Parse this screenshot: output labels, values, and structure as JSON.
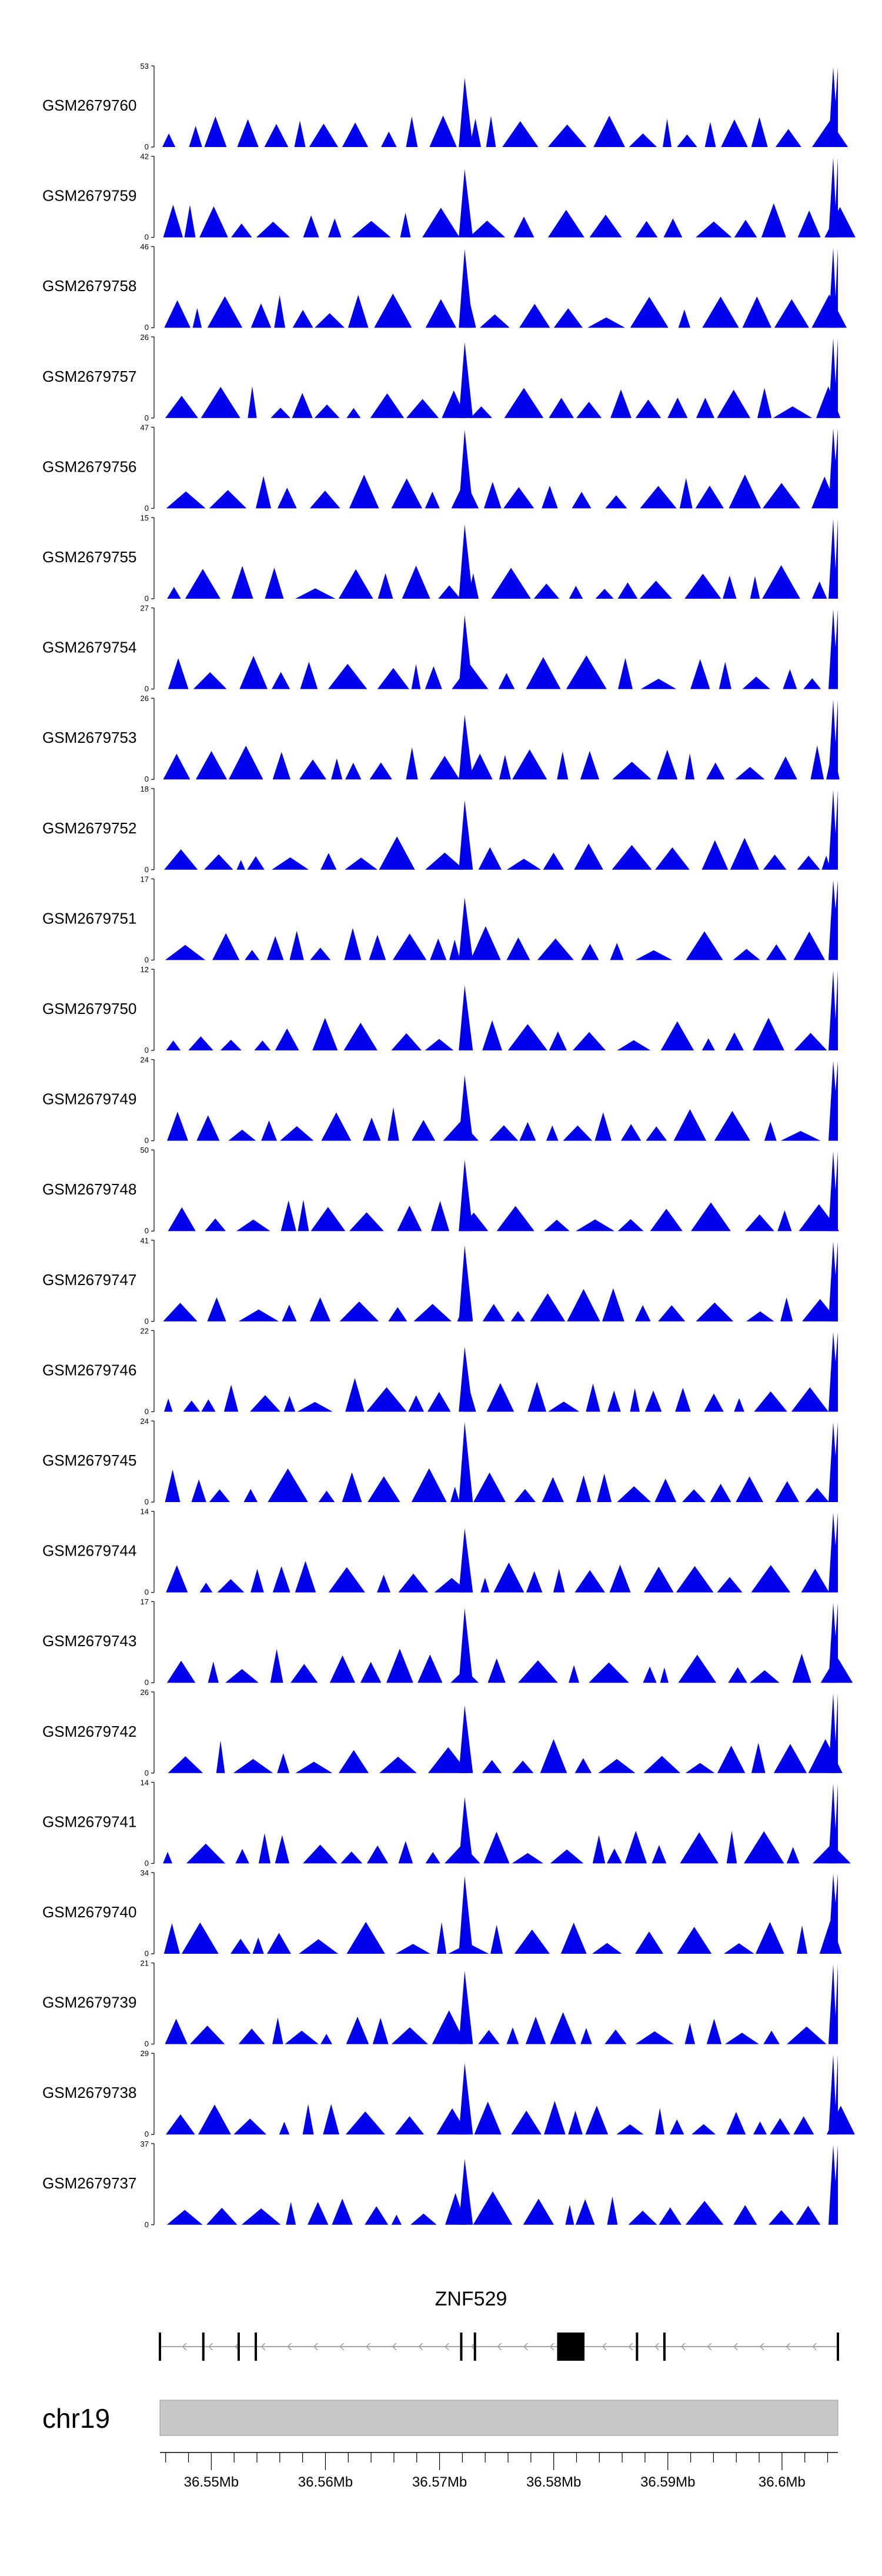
{
  "chart_data": {
    "type": "area",
    "title": "",
    "xlabel": "",
    "ylabel": "",
    "chromosome": "chr19",
    "xlim": [
      36.5455,
      36.6049
    ],
    "gene": {
      "name": "ZNF529",
      "start": 36.5455,
      "end": 36.6049,
      "strand": "-"
    },
    "axis_ticks": [
      {
        "label": "36.55Mb",
        "value": 36.55
      },
      {
        "label": "36.56Mb",
        "value": 36.56
      },
      {
        "label": "36.57Mb",
        "value": 36.57
      },
      {
        "label": "36.58Mb",
        "value": 36.58
      },
      {
        "label": "36.59Mb",
        "value": 36.59
      },
      {
        "label": "36.6Mb",
        "value": 36.6
      }
    ],
    "tracks": [
      {
        "name": "GSM2679760",
        "ymax": 53,
        "ymin": 0,
        "seed": 760
      },
      {
        "name": "GSM2679759",
        "ymax": 42,
        "ymin": 0,
        "seed": 759
      },
      {
        "name": "GSM2679758",
        "ymax": 46,
        "ymin": 0,
        "seed": 758
      },
      {
        "name": "GSM2679757",
        "ymax": 26,
        "ymin": 0,
        "seed": 757
      },
      {
        "name": "GSM2679756",
        "ymax": 47,
        "ymin": 0,
        "seed": 756
      },
      {
        "name": "GSM2679755",
        "ymax": 15,
        "ymin": 0,
        "seed": 755
      },
      {
        "name": "GSM2679754",
        "ymax": 27,
        "ymin": 0,
        "seed": 754
      },
      {
        "name": "GSM2679753",
        "ymax": 26,
        "ymin": 0,
        "seed": 753
      },
      {
        "name": "GSM2679752",
        "ymax": 18,
        "ymin": 0,
        "seed": 752
      },
      {
        "name": "GSM2679751",
        "ymax": 17,
        "ymin": 0,
        "seed": 751
      },
      {
        "name": "GSM2679750",
        "ymax": 12,
        "ymin": 0,
        "seed": 750
      },
      {
        "name": "GSM2679749",
        "ymax": 24,
        "ymin": 0,
        "seed": 749
      },
      {
        "name": "GSM2679748",
        "ymax": 50,
        "ymin": 0,
        "seed": 748
      },
      {
        "name": "GSM2679747",
        "ymax": 41,
        "ymin": 0,
        "seed": 747
      },
      {
        "name": "GSM2679746",
        "ymax": 22,
        "ymin": 0,
        "seed": 746
      },
      {
        "name": "GSM2679745",
        "ymax": 24,
        "ymin": 0,
        "seed": 745
      },
      {
        "name": "GSM2679744",
        "ymax": 14,
        "ymin": 0,
        "seed": 744
      },
      {
        "name": "GSM2679743",
        "ymax": 17,
        "ymin": 0,
        "seed": 743
      },
      {
        "name": "GSM2679742",
        "ymax": 26,
        "ymin": 0,
        "seed": 742
      },
      {
        "name": "GSM2679741",
        "ymax": 14,
        "ymin": 0,
        "seed": 741
      },
      {
        "name": "GSM2679740",
        "ymax": 34,
        "ymin": 0,
        "seed": 740
      },
      {
        "name": "GSM2679739",
        "ymax": 21,
        "ymin": 0,
        "seed": 739
      },
      {
        "name": "GSM2679738",
        "ymax": 29,
        "ymin": 0,
        "seed": 738
      },
      {
        "name": "GSM2679737",
        "ymax": 37,
        "ymin": 0,
        "seed": 737
      }
    ],
    "colors": {
      "signal": "#0000ee",
      "ideogram": "#c8c8c8",
      "exon": "#000000",
      "intron": "#888888"
    }
  }
}
